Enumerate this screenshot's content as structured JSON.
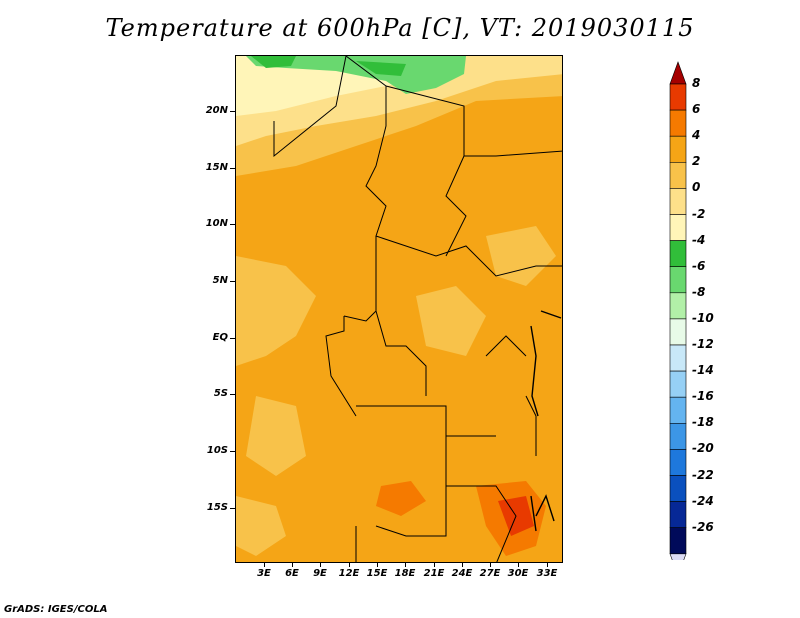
{
  "title": "Temperature at 600hPa [C], VT: 2019030115",
  "credit": "GrADS: IGES/COLA",
  "lat_labels": [
    "20N",
    "15N",
    "10N",
    "5N",
    "EQ",
    "5S",
    "10S",
    "15S"
  ],
  "lon_labels": [
    "3E",
    "6E",
    "9E",
    "12E",
    "15E",
    "18E",
    "21E",
    "24E",
    "27E",
    "30E",
    "33E"
  ],
  "colorbar": {
    "labels": [
      "8",
      "6",
      "4",
      "2",
      "0",
      "-2",
      "-4",
      "-6",
      "-8",
      "-10",
      "-12",
      "-14",
      "-16",
      "-18",
      "-20",
      "-22",
      "-24",
      "-26"
    ],
    "colors": [
      "#a50000",
      "#e83a00",
      "#f57a00",
      "#f5a516",
      "#f8c24a",
      "#fde08a",
      "#fff5b8",
      "#31be3a",
      "#69d86f",
      "#b2f0a8",
      "#e8fbe8",
      "#c8e8f8",
      "#96d0f5",
      "#64b4f0",
      "#3c96e6",
      "#1e78dc",
      "#0a50be",
      "#062896",
      "#000a5a",
      "#dcdcf5"
    ]
  },
  "field_colors": {
    "warm_4": "#f5a516",
    "warm_2": "#f8c24a",
    "warm_0": "#fde08a",
    "cool_m2": "#fff5b8",
    "green_m4": "#31be3a",
    "green_m6": "#69d86f",
    "hot_6": "#f57a00",
    "hot_8": "#e83a00"
  }
}
